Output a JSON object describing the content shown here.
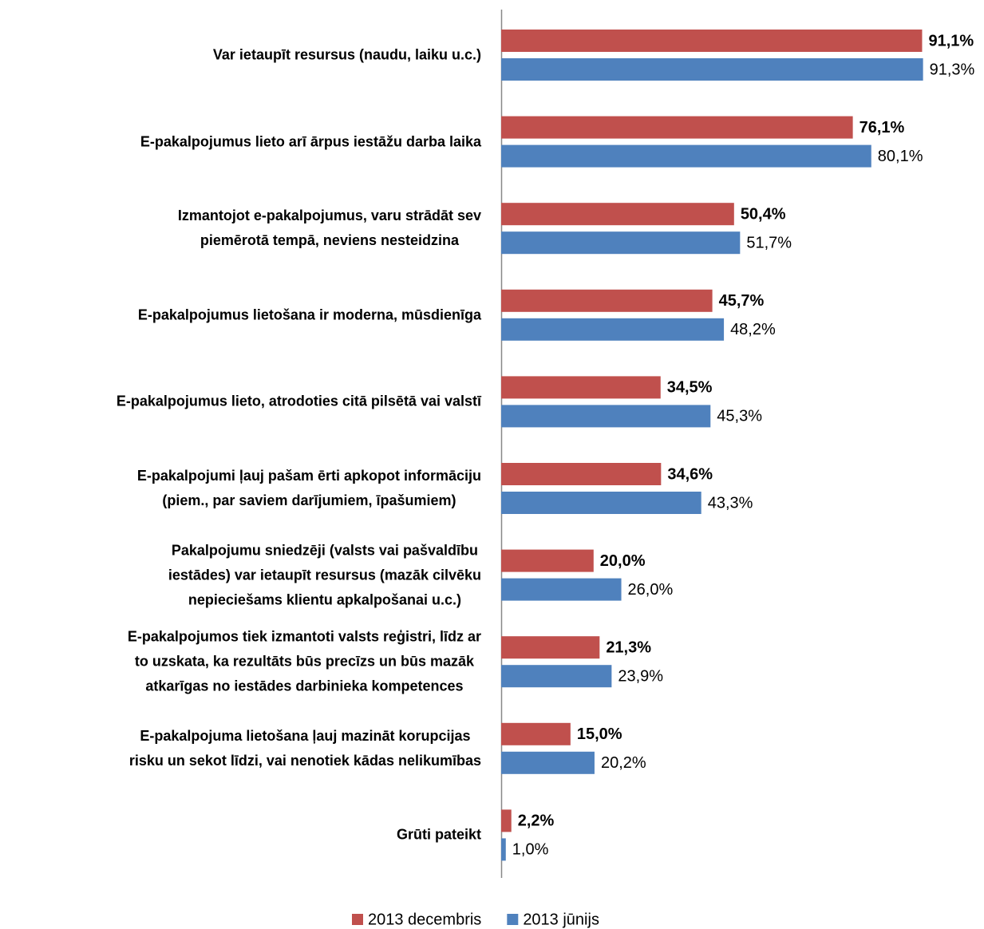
{
  "chart_data": {
    "type": "bar",
    "orientation": "horizontal",
    "categories": [
      "Var ietaupīt resursus (naudu, laiku u.c.)",
      "E-pakalpojumus lieto arī ārpus iestāžu darba laika",
      "Izmantojot e-pakalpojumus, varu strādāt sev\npiemērotā tempā, neviens nesteidzina",
      "E-pakalpojumus lietošana ir moderna, mūsdienīga",
      "E-pakalpojumus lieto, atrodoties citā pilsētā vai valstī",
      "E-pakalpojumi ļauj pašam ērti apkopot informāciju\n(piem., par saviem darījumiem, īpašumiem)",
      "Pakalpojumu sniedzēji (valsts vai pašvaldību\niestādes) var ietaupīt resursus (mazāk cilvēku\nnepieciešams klientu apkalpošanai u.c.)",
      "E-pakalpojumos tiek izmantoti valsts reģistri, līdz ar\nto uzskata, ka rezultāts būs precīzs un būs mazāk\natkarīgas no iestādes darbinieka kompetences",
      "E-pakalpojuma lietošana ļauj mazināt korupcijas\nrisku un sekot līdzi, vai nenotiek kādas nelikumības",
      "Grūti pateikt"
    ],
    "series": [
      {
        "name": "2013 decembris",
        "color": "#c0504d",
        "values": [
          91.1,
          76.1,
          50.4,
          45.7,
          34.5,
          34.6,
          20.0,
          21.3,
          15.0,
          2.2
        ],
        "value_labels": [
          "91,1%",
          "76,1%",
          "50,4%",
          "45,7%",
          "34,5%",
          "34,6%",
          "20,0%",
          "21,3%",
          "15,0%",
          "2,2%"
        ]
      },
      {
        "name": "2013 jūnijs",
        "color": "#4f81bd",
        "values": [
          91.3,
          80.1,
          51.7,
          48.2,
          45.3,
          43.3,
          26.0,
          23.9,
          20.2,
          1.0
        ],
        "value_labels": [
          "91,3%",
          "80,1%",
          "51,7%",
          "48,2%",
          "45,3%",
          "43,3%",
          "26,0%",
          "23,9%",
          "20,2%",
          "1,0%"
        ]
      }
    ],
    "xlim": [
      0,
      100
    ],
    "legend": "bottom"
  }
}
